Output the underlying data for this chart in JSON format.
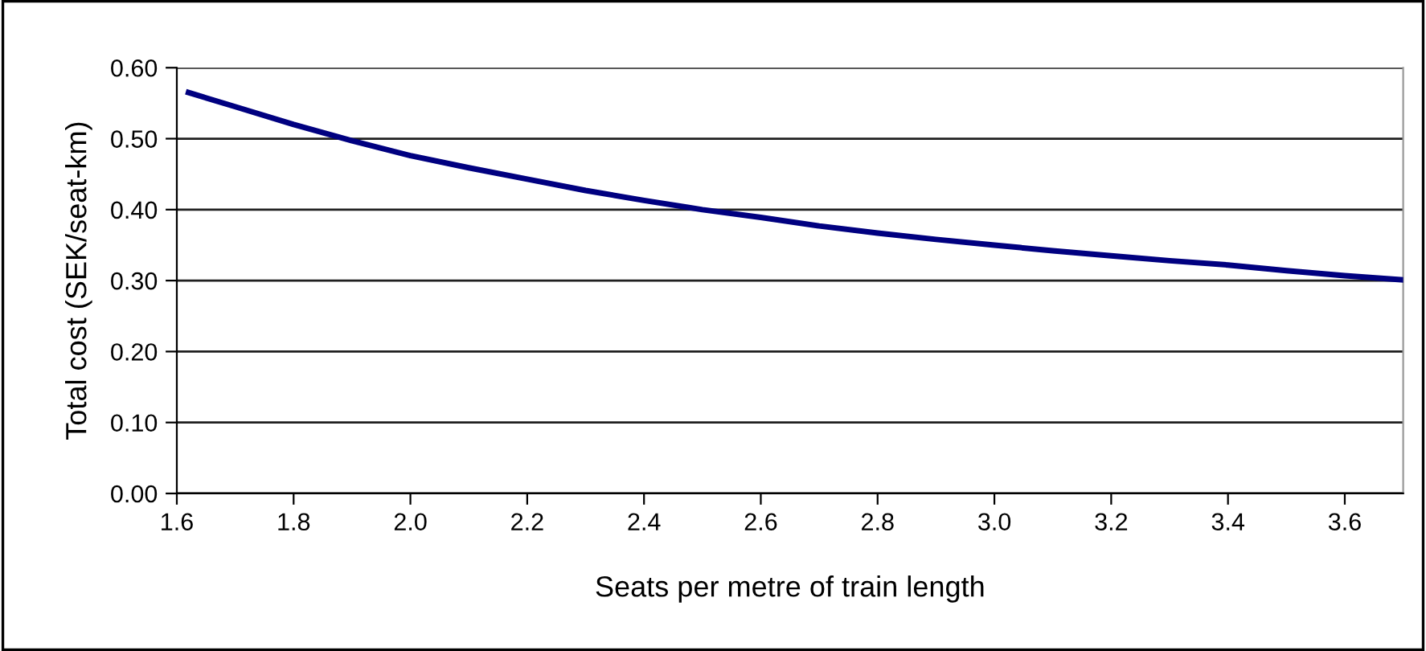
{
  "chart_data": {
    "type": "line",
    "xlabel": "Seats per metre of train length",
    "ylabel": "Total cost (SEK/seat-km)",
    "x": [
      1.62,
      1.7,
      1.8,
      1.9,
      2.0,
      2.1,
      2.2,
      2.3,
      2.4,
      2.5,
      2.6,
      2.7,
      2.8,
      2.9,
      3.0,
      3.1,
      3.2,
      3.3,
      3.4,
      3.5,
      3.6,
      3.7
    ],
    "series": [
      {
        "color": "#000080",
        "values": [
          0.565,
          0.545,
          0.52,
          0.497,
          0.476,
          0.459,
          0.443,
          0.427,
          0.413,
          0.4,
          0.389,
          0.377,
          0.367,
          0.358,
          0.35,
          0.342,
          0.335,
          0.328,
          0.322,
          0.314,
          0.307,
          0.301
        ]
      }
    ],
    "xlim": [
      1.6,
      3.7
    ],
    "xticks": [
      {
        "value": 1.6,
        "label": "1.6"
      },
      {
        "value": 1.8,
        "label": "1.8"
      },
      {
        "value": 2.0,
        "label": "2.0"
      },
      {
        "value": 2.2,
        "label": "2.2"
      },
      {
        "value": 2.4,
        "label": "2.4"
      },
      {
        "value": 2.6,
        "label": "2.6"
      },
      {
        "value": 2.8,
        "label": "2.8"
      },
      {
        "value": 3.0,
        "label": "3.0"
      },
      {
        "value": 3.2,
        "label": "3.2"
      },
      {
        "value": 3.4,
        "label": "3.4"
      },
      {
        "value": 3.6,
        "label": "3.6"
      }
    ],
    "ylim": [
      0,
      0.6
    ],
    "yticks": [
      {
        "value": 0,
        "label": "0.00"
      },
      {
        "value": 0.1,
        "label": "0.10"
      },
      {
        "value": 0.2,
        "label": "0.20"
      },
      {
        "value": 0.3,
        "label": "0.30"
      },
      {
        "value": 0.4,
        "label": "0.40"
      },
      {
        "value": 0.5,
        "label": "0.50"
      },
      {
        "value": 0.6,
        "label": "0.60"
      }
    ],
    "grid": "y",
    "legend": false,
    "marker": "none",
    "line_style": "solid"
  }
}
